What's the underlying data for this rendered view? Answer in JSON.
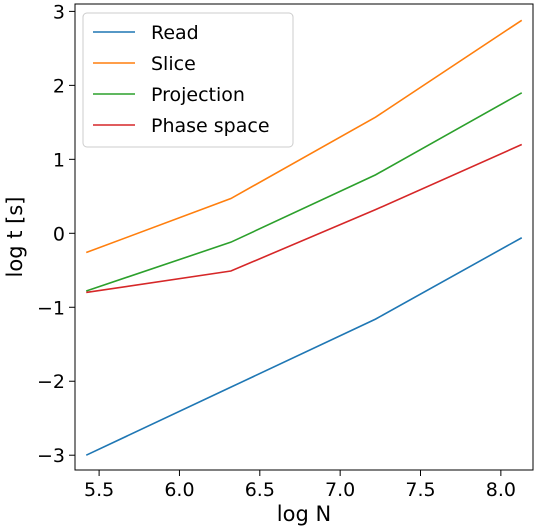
{
  "chart_data": {
    "type": "line",
    "xlabel": "log N",
    "ylabel": "log t [s]",
    "xlim": [
      5.35,
      8.2
    ],
    "ylim": [
      -3.2,
      3.1
    ],
    "xticks": [
      5.5,
      6.0,
      6.5,
      7.0,
      7.5,
      8.0
    ],
    "xtick_labels": [
      "5.5",
      "6.0",
      "6.5",
      "7.0",
      "7.5",
      "8.0"
    ],
    "yticks": [
      -3,
      -2,
      -1,
      0,
      1,
      2,
      3
    ],
    "ytick_labels": [
      "−3",
      "−2",
      "−1",
      "0",
      "1",
      "2",
      "3"
    ],
    "grid": false,
    "legend_position": "top-left",
    "x": [
      5.42,
      6.32,
      7.22,
      8.13
    ],
    "series": [
      {
        "name": "Read",
        "color": "#1f77b4",
        "values": [
          -3.0,
          -2.08,
          -1.16,
          -0.06
        ]
      },
      {
        "name": "Slice",
        "color": "#ff7f0e",
        "values": [
          -0.26,
          0.47,
          1.57,
          2.88
        ]
      },
      {
        "name": "Projection",
        "color": "#2ca02c",
        "values": [
          -0.78,
          -0.12,
          0.79,
          1.9
        ]
      },
      {
        "name": "Phase space",
        "color": "#d62728",
        "values": [
          -0.8,
          -0.51,
          0.32,
          1.2
        ]
      }
    ]
  }
}
